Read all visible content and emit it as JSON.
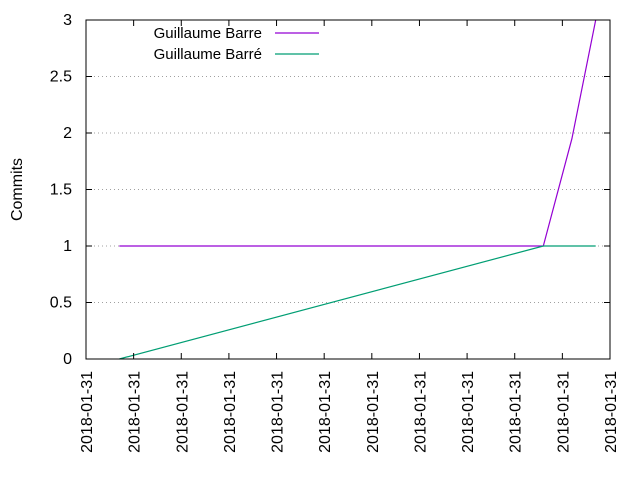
{
  "chart_data": {
    "type": "line",
    "title": "",
    "xlabel": "",
    "ylabel": "Commits",
    "ylim": [
      0,
      3
    ],
    "y_ticks": [
      0,
      0.5,
      1,
      1.5,
      2,
      2.5,
      3
    ],
    "y_tick_labels": [
      "0",
      "0.5",
      "1",
      "1.5",
      "2",
      "2.5",
      "3"
    ],
    "x_tick_labels": [
      "2018-01-31",
      "2018-01-31",
      "2018-01-31",
      "2018-01-31",
      "2018-01-31",
      "2018-01-31",
      "2018-01-31",
      "2018-01-31",
      "2018-01-31",
      "2018-01-31",
      "2018-01-31",
      "2018-01-31"
    ],
    "x_tick_positions": [
      0,
      1,
      2,
      3,
      4,
      5,
      6,
      7,
      8,
      9,
      10,
      11
    ],
    "xlim": [
      0,
      11
    ],
    "grid": true,
    "legend_position": "top-left",
    "series": [
      {
        "name": "Guillaume Barre",
        "color": "#9400d3",
        "x": [
          0.7,
          9.6,
          10.2,
          10.7
        ],
        "y": [
          1,
          1,
          1.95,
          3
        ]
      },
      {
        "name": "Guillaume Barré",
        "color": "#009e73",
        "x": [
          0.7,
          9.6,
          10.7
        ],
        "y": [
          0,
          1,
          1
        ]
      }
    ]
  }
}
